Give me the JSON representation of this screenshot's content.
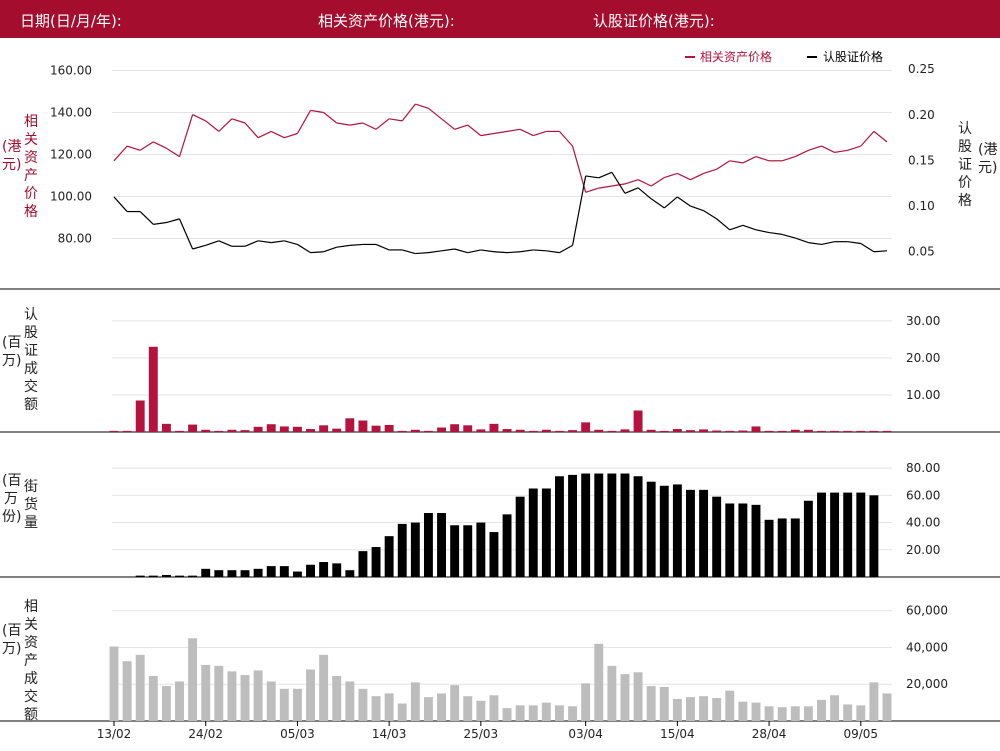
{
  "header": {
    "date_label": "日期(日/月/年):",
    "underlying_label": "相关资产价格(港元):",
    "warrant_label": "认股证价格(港元):"
  },
  "legend": {
    "underlying": "相关资产价格",
    "warrant": "认股证价格"
  },
  "axis_titles": {
    "price_left_main": "相关资产价格",
    "price_left_unit": "(港元)",
    "price_right_main": "认股证价格",
    "price_right_unit": "(港元)",
    "turnover_main": "认股证成交额",
    "turnover_unit": "(百万)",
    "outstanding_main": "街货量",
    "outstanding_unit": "(百万份)",
    "underlying_turnover_main": "相关资产成交额",
    "underlying_turnover_unit": "(百万)"
  },
  "colors": {
    "header_bg": "#a50d2e",
    "underlying": "#b5123d",
    "warrant": "#000000",
    "turnover_bar": "#b5123d",
    "outstanding_bar": "#000000",
    "underlying_turnover_bar": "#bdbdbd"
  },
  "chart_data": [
    {
      "type": "line",
      "panel": "price",
      "x_tick_labels": [
        "13/02",
        "24/02",
        "05/03",
        "14/03",
        "25/03",
        "03/04",
        "15/04",
        "28/04",
        "09/05"
      ],
      "left_axis": {
        "range": [
          65,
          165
        ],
        "ticks": [
          "160.00",
          "140.00",
          "120.00",
          "100.00",
          "80.00"
        ],
        "tick_values": [
          160,
          140,
          120,
          100,
          80
        ]
      },
      "right_axis": {
        "range": [
          0.03,
          0.26
        ],
        "ticks": [
          "0.25",
          "0.20",
          "0.15",
          "0.10",
          "0.05"
        ],
        "tick_values": [
          0.25,
          0.2,
          0.15,
          0.1,
          0.05
        ]
      },
      "grid": true,
      "legend_position": "top-right",
      "series": [
        {
          "name": "相关资产价格",
          "axis": "left",
          "values": [
            117,
            124,
            122,
            126,
            123,
            119,
            139,
            136,
            131,
            137,
            135,
            128,
            131,
            128,
            130,
            141,
            140,
            135,
            134,
            135,
            132,
            137,
            136,
            144,
            142,
            137,
            132,
            134,
            129,
            130,
            131,
            132,
            129,
            131,
            131,
            124,
            102,
            104,
            105,
            106,
            108,
            105,
            109,
            111,
            108,
            111,
            113,
            117,
            116,
            119,
            117,
            117,
            119,
            122,
            124,
            121,
            122,
            124,
            131,
            126
          ]
        },
        {
          "name": "认股证价格",
          "axis": "right",
          "values": [
            0.11,
            0.094,
            0.094,
            0.08,
            0.082,
            0.086,
            0.053,
            0.057,
            0.062,
            0.056,
            0.056,
            0.062,
            0.06,
            0.062,
            0.058,
            0.049,
            0.05,
            0.055,
            0.057,
            0.058,
            0.058,
            0.052,
            0.052,
            0.048,
            0.049,
            0.051,
            0.053,
            0.049,
            0.052,
            0.05,
            0.049,
            0.05,
            0.052,
            0.051,
            0.049,
            0.057,
            0.133,
            0.131,
            0.137,
            0.114,
            0.12,
            0.108,
            0.098,
            0.11,
            0.1,
            0.095,
            0.086,
            0.074,
            0.079,
            0.074,
            0.071,
            0.069,
            0.065,
            0.06,
            0.058,
            0.061,
            0.061,
            0.059,
            0.05,
            0.051
          ]
        }
      ]
    },
    {
      "type": "bar",
      "panel": "warrant_turnover",
      "ylabel": "认股证成交额 (百万)",
      "range": [
        0,
        34
      ],
      "ticks": [
        "30.00",
        "20.00",
        "10.00"
      ],
      "tick_values": [
        30,
        20,
        10
      ],
      "grid": true,
      "values": [
        0.3,
        0.3,
        8.5,
        23,
        2.2,
        0.3,
        2,
        0.6,
        0.3,
        0.6,
        0.5,
        1.4,
        2.1,
        1.5,
        1.4,
        0.8,
        1.8,
        0.9,
        3.7,
        3.1,
        1.7,
        1.9,
        0.3,
        0.6,
        0.3,
        1.2,
        2.1,
        1.8,
        0.7,
        2.2,
        0.8,
        0.6,
        0.3,
        0.6,
        0.3,
        0.5,
        2.6,
        0.6,
        0.3,
        0.7,
        5.8,
        0.6,
        0.3,
        0.8,
        0.5,
        0.7,
        0.4,
        0.3,
        0.4,
        1.5,
        0.3,
        0.3,
        0.6,
        0.6,
        0.3,
        0.3,
        0.3,
        0.3,
        0.3,
        0.3
      ]
    },
    {
      "type": "bar",
      "panel": "outstanding",
      "ylabel": "街货量 (百万份)",
      "range": [
        0,
        83
      ],
      "ticks": [
        "80.00",
        "60.00",
        "40.00",
        "20.00"
      ],
      "tick_values": [
        80,
        60,
        40,
        20
      ],
      "grid": true,
      "values": [
        0,
        0,
        1,
        1,
        1.5,
        1,
        1,
        6,
        5,
        5,
        5,
        6,
        8,
        8,
        4,
        9,
        11,
        10,
        5,
        19,
        22,
        30,
        39,
        40,
        47,
        47,
        38,
        38,
        40,
        33,
        46,
        59,
        65,
        65,
        74,
        75,
        76,
        76,
        76,
        76,
        74,
        70,
        67,
        68,
        64,
        64,
        59,
        54,
        54,
        53,
        42,
        43,
        43,
        56,
        62,
        62,
        62,
        62,
        60,
        0
      ]
    },
    {
      "type": "bar",
      "panel": "underlying_turnover",
      "ylabel": "相关资产成交额 (百万)",
      "range": [
        0,
        68000
      ],
      "ticks": [
        "60,000",
        "40,000",
        "20,000"
      ],
      "tick_values": [
        60000,
        40000,
        20000
      ],
      "grid": true,
      "values": [
        40500,
        32500,
        36000,
        24500,
        19000,
        21500,
        45000,
        30500,
        30000,
        27000,
        25000,
        27500,
        21500,
        17500,
        17500,
        28000,
        36000,
        24500,
        21500,
        17500,
        13500,
        15000,
        9500,
        21000,
        13000,
        15000,
        19500,
        13500,
        11000,
        14000,
        7000,
        8500,
        8500,
        10000,
        8500,
        8000,
        20500,
        42000,
        30000,
        25500,
        26500,
        19000,
        18500,
        12000,
        13000,
        13500,
        12500,
        16500,
        10500,
        10000,
        8000,
        7500,
        8000,
        8000,
        11500,
        14000,
        9000,
        8500,
        21000,
        15000
      ]
    }
  ]
}
